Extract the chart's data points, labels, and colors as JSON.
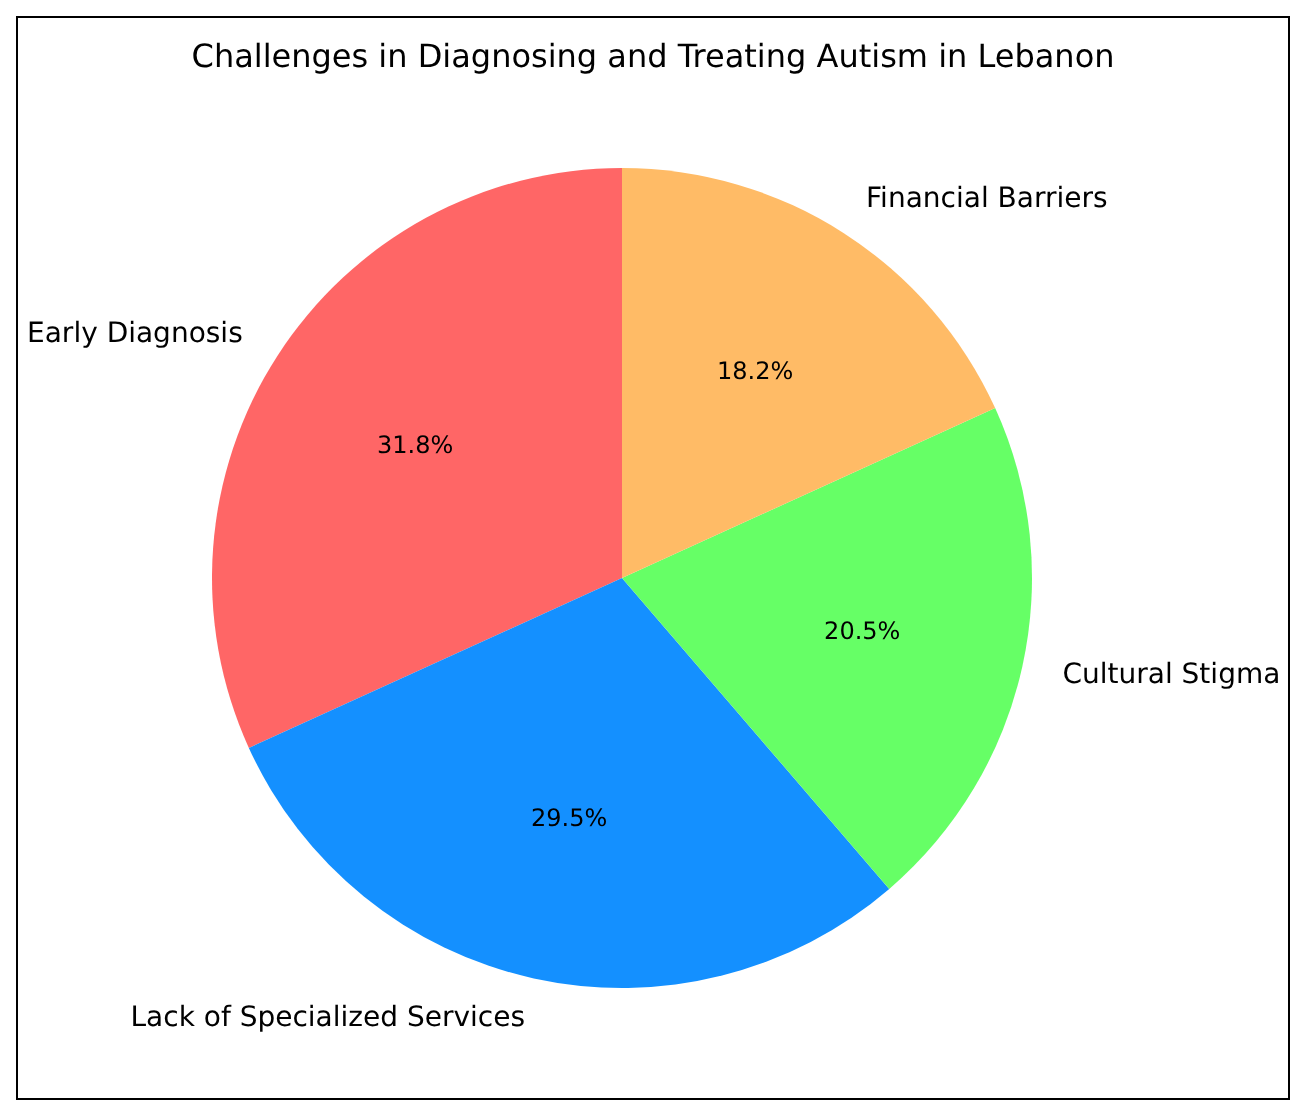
{
  "chart_data": {
    "type": "pie",
    "title": "Challenges in Diagnosing and Treating Autism in Lebanon",
    "categories": [
      "Early Diagnosis",
      "Lack of Specialized Services",
      "Cultural Stigma",
      "Financial Barriers"
    ],
    "values": [
      31.8,
      29.5,
      20.5,
      18.2
    ],
    "colors": [
      "#ff6666",
      "#1490ff",
      "#66ff66",
      "#ffbb66"
    ],
    "value_labels": [
      "31.8%",
      "29.5%",
      "20.5%",
      "18.2%"
    ],
    "legend": false
  }
}
